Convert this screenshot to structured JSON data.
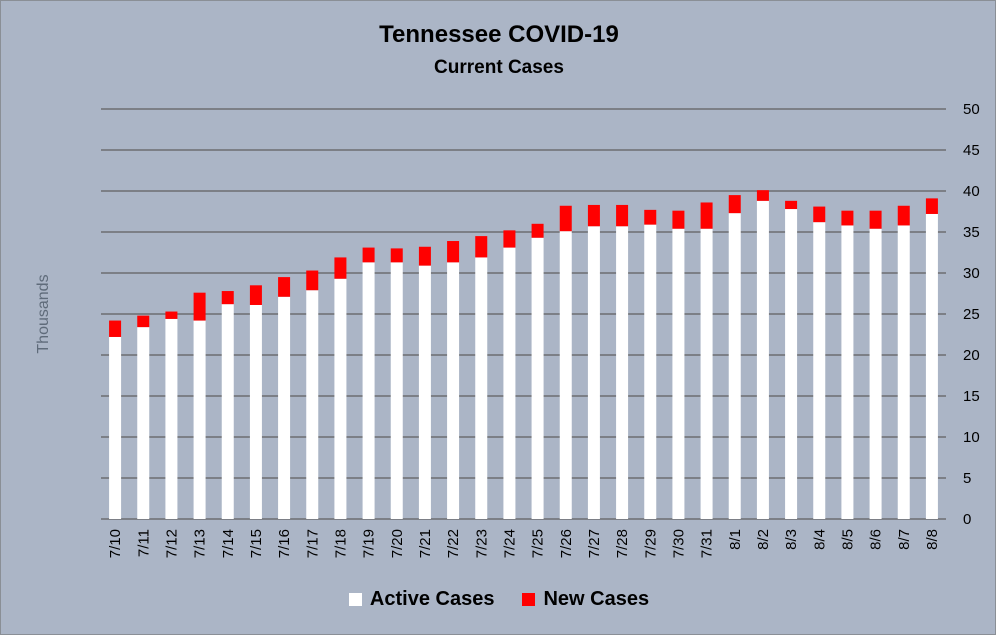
{
  "chart_data": {
    "type": "bar",
    "stacked": true,
    "title": "Tennessee COVID-19",
    "subtitle": "Current Cases",
    "ylabel": "Thousands",
    "ylim": [
      0,
      50
    ],
    "yticks": [
      0,
      5,
      10,
      15,
      20,
      25,
      30,
      35,
      40,
      45,
      50
    ],
    "y_axis_side": "right",
    "grid": true,
    "legend_position": "bottom",
    "categories": [
      "7/10",
      "7/11",
      "7/12",
      "7/13",
      "7/14",
      "7/15",
      "7/16",
      "7/17",
      "7/18",
      "7/19",
      "7/20",
      "7/21",
      "7/22",
      "7/23",
      "7/24",
      "7/25",
      "7/26",
      "7/27",
      "7/28",
      "7/29",
      "7/30",
      "7/31",
      "8/1",
      "8/2",
      "8/3",
      "8/4",
      "8/5",
      "8/6",
      "8/7",
      "8/8"
    ],
    "series": [
      {
        "name": "Active Cases",
        "color": "#ffffff",
        "values": [
          22.2,
          23.4,
          24.4,
          24.2,
          26.2,
          26.1,
          27.1,
          27.9,
          29.3,
          31.3,
          31.3,
          30.9,
          31.3,
          31.9,
          33.1,
          34.3,
          35.1,
          35.7,
          35.7,
          35.9,
          35.4,
          35.4,
          37.3,
          38.8,
          37.8,
          36.2,
          35.8,
          35.4,
          35.8,
          37.2
        ]
      },
      {
        "name": "New Cases",
        "color": "#ff0000",
        "values": [
          2.0,
          1.4,
          0.9,
          3.4,
          1.6,
          2.4,
          2.4,
          2.4,
          2.6,
          1.8,
          1.7,
          2.3,
          2.6,
          2.6,
          2.1,
          1.7,
          3.1,
          2.6,
          2.6,
          1.8,
          2.2,
          3.2,
          2.2,
          1.3,
          1.0,
          1.9,
          1.8,
          2.2,
          2.4,
          1.9
        ]
      }
    ]
  },
  "colors": {
    "background": "#abb5c6",
    "gridline": "#5f5f5f",
    "text": "#000000",
    "axis_label": "#5f6b7a"
  }
}
